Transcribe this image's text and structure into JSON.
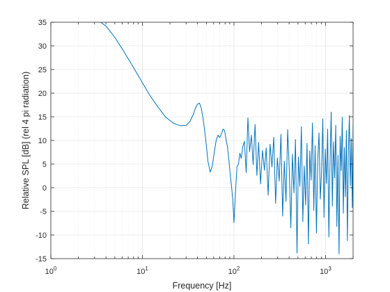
{
  "chart_data": {
    "type": "line",
    "title": "",
    "xlabel": "Frequency [Hz]",
    "ylabel": "Relative SPL [dB] (rel 4 pi radiation)",
    "xscale": "log",
    "xlim": [
      1,
      2000
    ],
    "ylim": [
      -15,
      35
    ],
    "grid": true,
    "minor_grid": true,
    "x_tick_labels": [
      {
        "value": 1,
        "base": "10",
        "exp": "0"
      },
      {
        "value": 10,
        "base": "10",
        "exp": "1"
      },
      {
        "value": 100,
        "base": "10",
        "exp": "2"
      },
      {
        "value": 1000,
        "base": "10",
        "exp": "3"
      }
    ],
    "y_ticks": [
      35,
      30,
      25,
      20,
      15,
      10,
      5,
      0,
      -5,
      -10,
      -15
    ],
    "y_tick_labels": [
      "35",
      "30",
      "25",
      "20",
      "15",
      "10",
      "5",
      "0",
      "-5",
      "-10",
      "-15"
    ],
    "line_color": "#0072BD",
    "series": [
      {
        "x": [
          3.5,
          4,
          5,
          6,
          7,
          8,
          10,
          12,
          15,
          18,
          22,
          26,
          30,
          33,
          36,
          38,
          40,
          42,
          44,
          46,
          48,
          50,
          52,
          55,
          58,
          61,
          64,
          67,
          70,
          73,
          76,
          79,
          82,
          85,
          88,
          91,
          94,
          97,
          100,
          102,
          105,
          108,
          112,
          116,
          120,
          125,
          130,
          136,
          142,
          148,
          155,
          162,
          170,
          178,
          186,
          195,
          205,
          215,
          225,
          236,
          248,
          260,
          272,
          285,
          298,
          312,
          326,
          340,
          355,
          370,
          386,
          402,
          418,
          435,
          452,
          470,
          488,
          506,
          525,
          545,
          565,
          585,
          606,
          628,
          650,
          673,
          696,
          720,
          745,
          770,
          796,
          822,
          849,
          877,
          905,
          934,
          963,
          993,
          1024,
          1055,
          1087,
          1120,
          1153,
          1187,
          1222,
          1257,
          1293,
          1330,
          1367,
          1405,
          1444,
          1483,
          1523,
          1564,
          1605,
          1647,
          1690,
          1733,
          1777,
          1822,
          1867,
          1913,
          1960,
          2000
        ],
        "y": [
          35.0,
          34.2,
          31.8,
          29.4,
          27.3,
          25.4,
          22.2,
          19.6,
          16.9,
          14.9,
          13.6,
          13.1,
          13.2,
          14.0,
          15.5,
          16.9,
          17.7,
          17.9,
          16.8,
          14.6,
          11.9,
          8.8,
          5.6,
          3.3,
          4.6,
          7.5,
          10.1,
          11.1,
          10.6,
          11.4,
          12.4,
          12.1,
          10.2,
          8.6,
          5.9,
          2.8,
          0.4,
          -2.5,
          -7.4,
          -4.2,
          0.6,
          4.5,
          5.0,
          7.3,
          6.2,
          8.7,
          9.8,
          3.2,
          14.8,
          7.6,
          11.1,
          4.9,
          13.4,
          2.6,
          9.6,
          0.8,
          7.9,
          3.7,
          8.4,
          -1.6,
          9.2,
          4.4,
          10.7,
          -3.3,
          6.3,
          1.4,
          11.3,
          -6.0,
          5.6,
          -2.9,
          12.3,
          3.8,
          -8.5,
          7.1,
          -1.1,
          10.2,
          -13.8,
          6.5,
          0.3,
          12.9,
          -7.2,
          4.6,
          -3.6,
          9.4,
          -11.9,
          7.8,
          1.6,
          13.7,
          -4.8,
          8.9,
          -9.6,
          6.0,
          11.6,
          -2.4,
          3.2,
          14.6,
          -6.3,
          8.2,
          0.9,
          12.4,
          -10.4,
          5.2,
          16.0,
          -3.9,
          9.7,
          2.1,
          13.2,
          -8.2,
          6.9,
          -14.0,
          10.9,
          3.6,
          14.9,
          -5.4,
          8.5,
          -1.9,
          12.1,
          -11.2,
          7.3,
          15.3,
          0.4,
          10.4,
          -4.2,
          13.4
        ]
      }
    ]
  }
}
